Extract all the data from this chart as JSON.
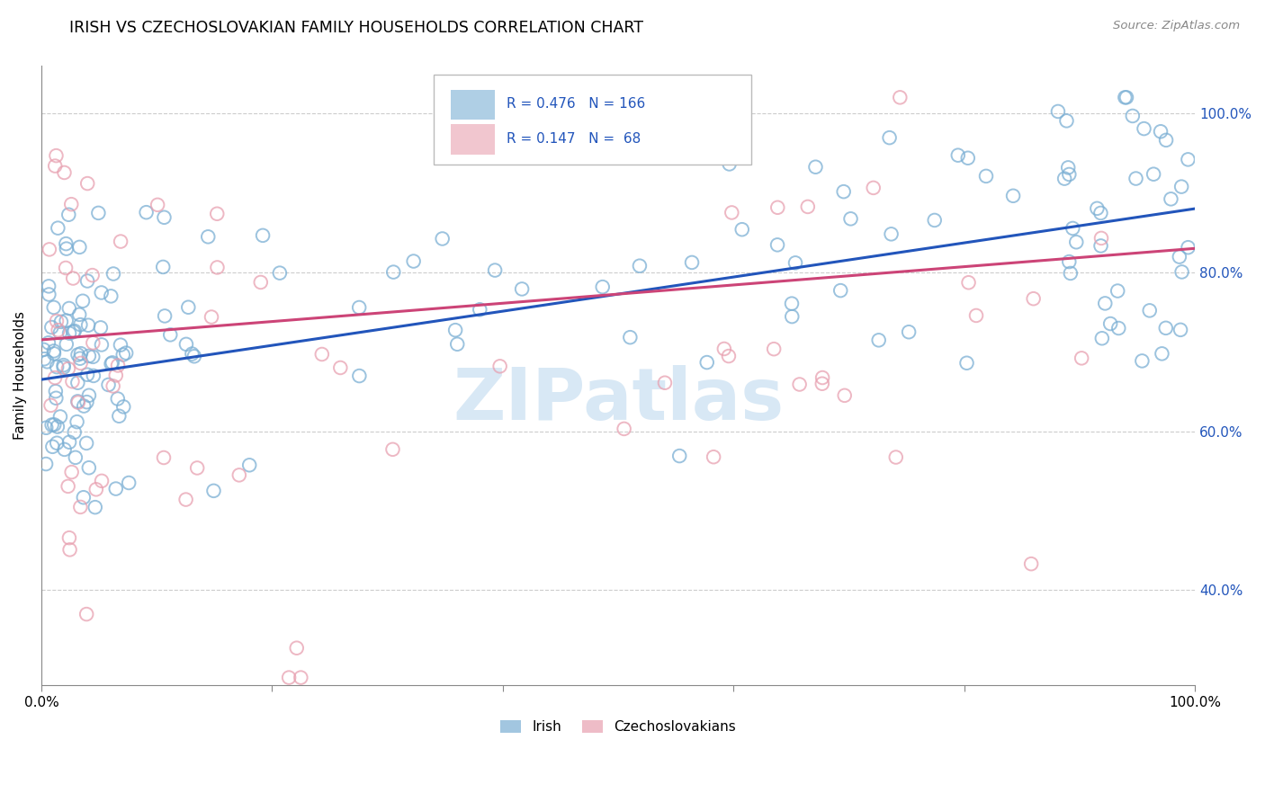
{
  "title": "IRISH VS CZECHOSLOVAKIAN FAMILY HOUSEHOLDS CORRELATION CHART",
  "source_text": "Source: ZipAtlas.com",
  "ylabel": "Family Households",
  "xlim": [
    0.0,
    1.0
  ],
  "ylim": [
    0.28,
    1.06
  ],
  "yticks": [
    0.4,
    0.6,
    0.8,
    1.0
  ],
  "xtick_labels": [
    "0.0%",
    "",
    "",
    "",
    "",
    "100.0%"
  ],
  "ytick_labels_right": [
    "40.0%",
    "60.0%",
    "80.0%",
    "100.0%"
  ],
  "legend_irish_r": "R = 0.476",
  "legend_irish_n": "N = 166",
  "legend_czech_r": "R = 0.147",
  "legend_czech_n": "N =  68",
  "irish_color": "#7bafd4",
  "czech_color": "#e8a0b0",
  "irish_line_color": "#2255bb",
  "czech_line_color": "#cc4477",
  "background_color": "#ffffff",
  "legend_text_color": "#2255bb",
  "right_axis_color": "#2255bb",
  "watermark_text": "ZIPatlas",
  "watermark_color": "#d8e8f5",
  "irish_seed": 42,
  "czech_seed": 99
}
